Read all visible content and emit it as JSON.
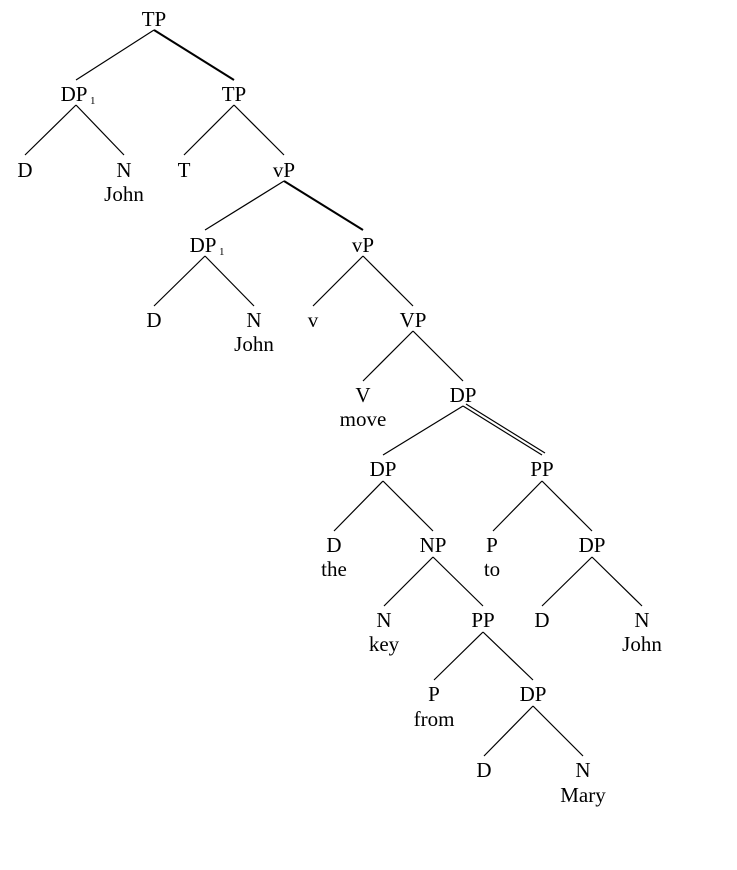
{
  "tree": {
    "root": {
      "cat": "TP"
    },
    "dp1_top": {
      "cat": "DP",
      "index": "1"
    },
    "d_top": {
      "cat": "D"
    },
    "n_top": {
      "cat": "N",
      "word": "John"
    },
    "tp_bar": {
      "cat": "TP"
    },
    "t": {
      "cat": "T"
    },
    "vp_upper": {
      "cat": "vP"
    },
    "dp1_low": {
      "cat": "DP",
      "index": "1"
    },
    "d_low": {
      "cat": "D"
    },
    "n_low": {
      "cat": "N",
      "word": "John"
    },
    "vp_bar": {
      "cat": "vP"
    },
    "little_v": {
      "cat": "v"
    },
    "big_vp": {
      "cat": "VP"
    },
    "verb": {
      "cat": "V",
      "word": "move"
    },
    "dp_obj": {
      "cat": "DP"
    },
    "dp_the": {
      "cat": "DP"
    },
    "d_the": {
      "cat": "D",
      "word": "the"
    },
    "np_key": {
      "cat": "NP"
    },
    "n_key": {
      "cat": "N",
      "word": "key"
    },
    "pp_from": {
      "cat": "PP"
    },
    "p_from": {
      "cat": "P",
      "word": "from"
    },
    "dp_mary": {
      "cat": "DP"
    },
    "d_mary": {
      "cat": "D"
    },
    "n_mary": {
      "cat": "N",
      "word": "Mary"
    },
    "pp_to": {
      "cat": "PP"
    },
    "p_to": {
      "cat": "P",
      "word": "to"
    },
    "dp_john_to": {
      "cat": "DP"
    },
    "d_john_to": {
      "cat": "D"
    },
    "n_john_to": {
      "cat": "N",
      "word": "John"
    }
  }
}
